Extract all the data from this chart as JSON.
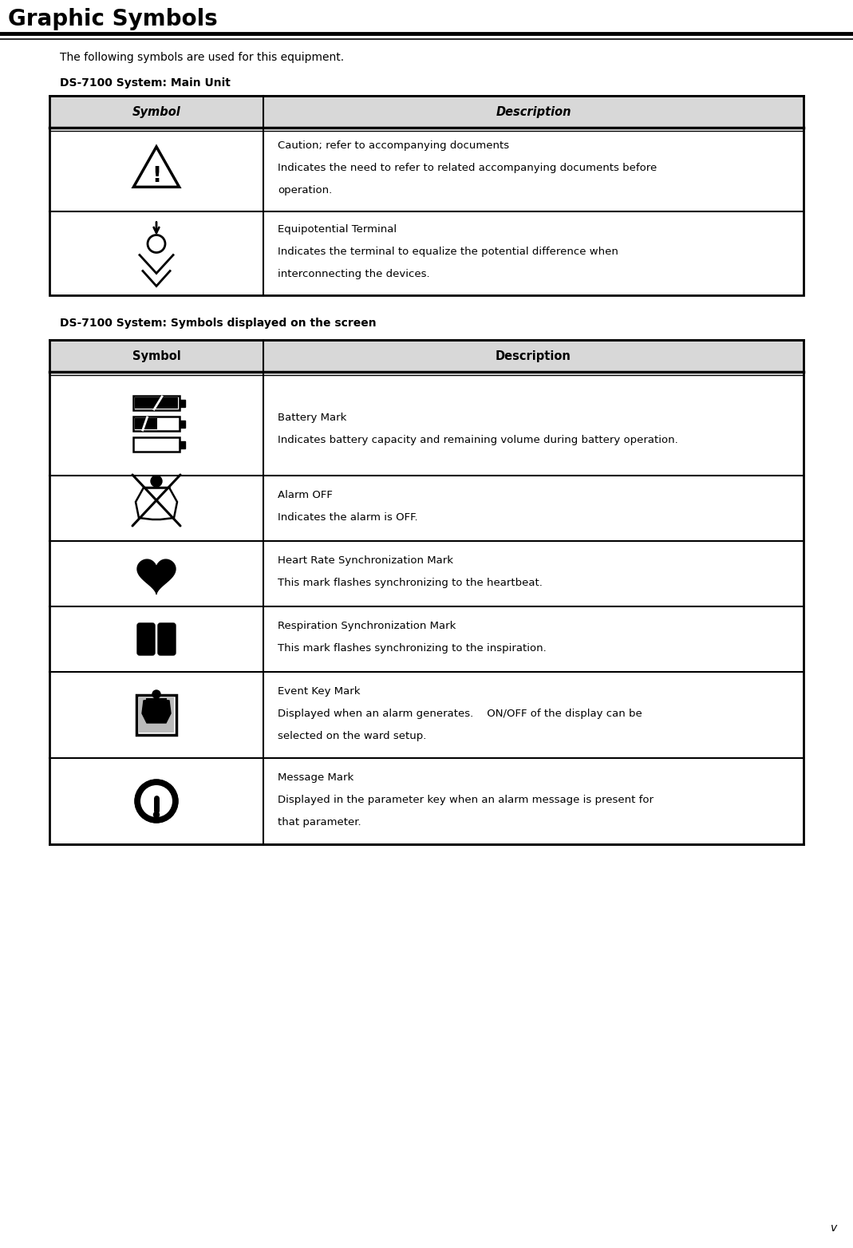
{
  "title": "Graphic Symbols",
  "subtitle": "The following symbols are used for this equipment.",
  "section1_title": "DS-7100 System: Main Unit",
  "section2_title": "DS-7100 System: Symbols displayed on the screen",
  "table1_rows": [
    {
      "symbol_type": "caution",
      "description_lines": [
        "Caution; refer to accompanying documents",
        "Indicates the need to refer to related accompanying documents before",
        "operation."
      ]
    },
    {
      "symbol_type": "equipotential",
      "description_lines": [
        "Equipotential Terminal",
        "Indicates the terminal to equalize the potential difference when",
        "interconnecting the devices."
      ]
    }
  ],
  "table2_rows": [
    {
      "symbol_type": "battery",
      "description_lines": [
        "Battery Mark",
        "Indicates battery capacity and remaining volume during battery operation."
      ]
    },
    {
      "symbol_type": "alarm_off",
      "description_lines": [
        "Alarm OFF",
        "Indicates the alarm is OFF."
      ]
    },
    {
      "symbol_type": "heart",
      "description_lines": [
        "Heart Rate Synchronization Mark",
        "This mark flashes synchronizing to the heartbeat."
      ]
    },
    {
      "symbol_type": "respiration",
      "description_lines": [
        "Respiration Synchronization Mark",
        "This mark flashes synchronizing to the inspiration."
      ]
    },
    {
      "symbol_type": "event_key",
      "description_lines": [
        "Event Key Mark",
        "Displayed when an alarm generates.    ON/OFF of the display can be",
        "selected on the ward setup."
      ]
    },
    {
      "symbol_type": "message",
      "description_lines": [
        "Message Mark",
        "Displayed in the parameter key when an alarm message is present for",
        "that parameter."
      ]
    }
  ],
  "page_number": "v",
  "bg_color": "#ffffff"
}
